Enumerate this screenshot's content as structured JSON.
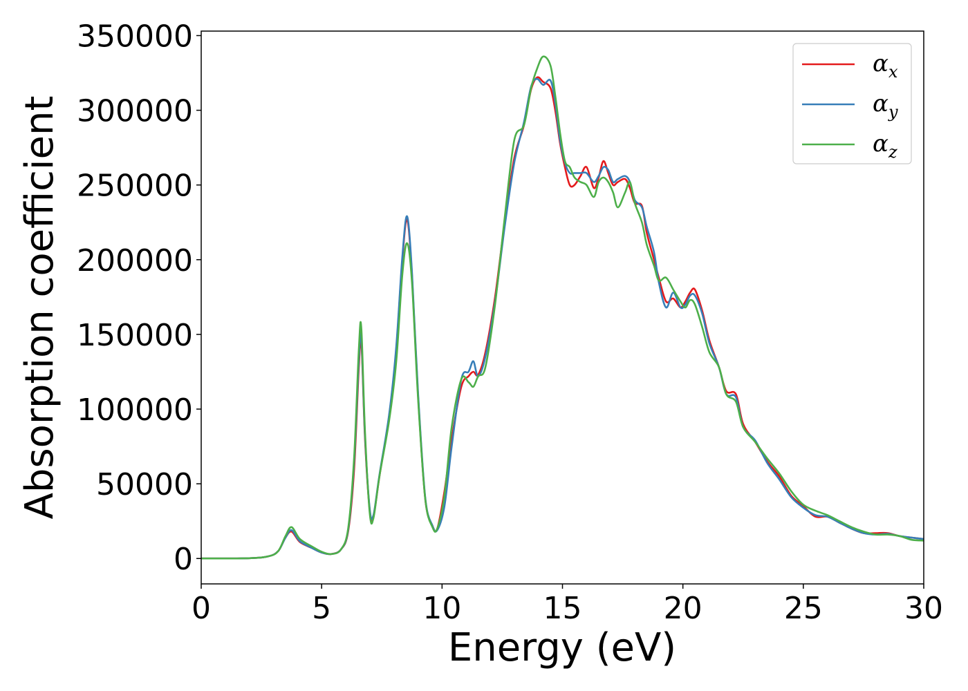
{
  "chart_data": {
    "type": "line",
    "title": "",
    "xlabel": "Energy (eV)",
    "ylabel": "Absorption coefficient",
    "xlim": [
      0,
      30
    ],
    "ylim": [
      -17000,
      353000
    ],
    "xticks": [
      0,
      5,
      10,
      15,
      20,
      25,
      30
    ],
    "yticks": [
      0,
      50000,
      100000,
      150000,
      200000,
      250000,
      300000,
      350000
    ],
    "grid": false,
    "legend_position": "top-right",
    "series": [
      {
        "name": "αx",
        "symbol": "α",
        "subscript": "x",
        "color": "#e41a1c",
        "x": [
          0,
          2,
          2.8,
          3.2,
          3.5,
          3.75,
          4.1,
          4.6,
          5.0,
          5.4,
          5.8,
          6.1,
          6.35,
          6.55,
          6.65,
          6.8,
          7.0,
          7.15,
          7.4,
          7.8,
          8.1,
          8.35,
          8.55,
          8.75,
          9.0,
          9.3,
          9.6,
          9.8,
          10.1,
          10.4,
          10.8,
          11.1,
          11.3,
          11.5,
          11.8,
          12.2,
          12.6,
          13.0,
          13.4,
          13.7,
          13.95,
          14.2,
          14.5,
          14.7,
          14.9,
          15.1,
          15.3,
          15.5,
          15.75,
          16.0,
          16.3,
          16.5,
          16.7,
          16.9,
          17.1,
          17.3,
          17.6,
          17.8,
          18.0,
          18.3,
          18.5,
          18.8,
          19.0,
          19.3,
          19.6,
          19.9,
          20.1,
          20.3,
          20.5,
          20.8,
          21.1,
          21.5,
          21.8,
          22.2,
          22.5,
          23.0,
          23.5,
          24.0,
          24.5,
          25.0,
          25.5,
          26.0,
          26.5,
          27.0,
          27.5,
          28.0,
          28.5,
          29.0,
          29.5,
          30.0
        ],
        "values": [
          0,
          200,
          1500,
          5000,
          14000,
          18000,
          11000,
          7000,
          4000,
          3000,
          6000,
          18000,
          60000,
          130000,
          145000,
          80000,
          32000,
          28000,
          55000,
          95000,
          140000,
          200000,
          227000,
          190000,
          110000,
          40000,
          22000,
          20000,
          45000,
          80000,
          115000,
          122000,
          125000,
          123000,
          138000,
          175000,
          225000,
          268000,
          290000,
          314000,
          322000,
          319000,
          315000,
          300000,
          278000,
          262000,
          250000,
          250000,
          256000,
          262000,
          248000,
          255000,
          266000,
          258000,
          250000,
          252000,
          254000,
          248000,
          238000,
          236000,
          218000,
          200000,
          188000,
          172000,
          174000,
          168000,
          172000,
          178000,
          180000,
          166000,
          146000,
          128000,
          112000,
          110000,
          90000,
          78000,
          65000,
          55000,
          42000,
          35000,
          28000,
          28000,
          24000,
          20000,
          17000,
          17000,
          17000,
          15000,
          14000,
          13000
        ]
      },
      {
        "name": "αy",
        "symbol": "α",
        "subscript": "y",
        "color": "#377eb8",
        "x": [
          0,
          2,
          2.8,
          3.2,
          3.5,
          3.75,
          4.1,
          4.6,
          5.0,
          5.4,
          5.8,
          6.1,
          6.35,
          6.55,
          6.65,
          6.8,
          7.0,
          7.15,
          7.4,
          7.8,
          8.1,
          8.35,
          8.55,
          8.75,
          9.0,
          9.3,
          9.6,
          9.8,
          10.1,
          10.4,
          10.8,
          11.1,
          11.3,
          11.5,
          11.8,
          12.2,
          12.6,
          13.0,
          13.4,
          13.7,
          13.95,
          14.2,
          14.5,
          14.7,
          14.9,
          15.1,
          15.3,
          15.5,
          15.75,
          16.0,
          16.3,
          16.5,
          16.7,
          16.9,
          17.1,
          17.3,
          17.6,
          17.8,
          18.0,
          18.3,
          18.5,
          18.8,
          19.0,
          19.3,
          19.6,
          19.9,
          20.1,
          20.3,
          20.5,
          20.8,
          21.1,
          21.5,
          21.8,
          22.2,
          22.5,
          23.0,
          23.5,
          24.0,
          24.5,
          25.0,
          25.5,
          26.0,
          26.5,
          27.0,
          27.5,
          28.0,
          28.5,
          29.0,
          29.5,
          30.0
        ],
        "values": [
          0,
          200,
          1500,
          5000,
          14000,
          19000,
          11500,
          7000,
          4000,
          3000,
          6000,
          19000,
          65000,
          135000,
          148000,
          82000,
          33000,
          29000,
          56000,
          96000,
          142000,
          202000,
          229000,
          192000,
          112000,
          41000,
          22000,
          19000,
          35000,
          75000,
          120000,
          125000,
          132000,
          122000,
          135000,
          172000,
          222000,
          265000,
          292000,
          316000,
          321000,
          317000,
          320000,
          305000,
          280000,
          265000,
          258000,
          258000,
          258000,
          258000,
          252000,
          256000,
          262000,
          260000,
          252000,
          254000,
          256000,
          252000,
          240000,
          235000,
          222000,
          205000,
          185000,
          168000,
          178000,
          168000,
          170000,
          176000,
          176000,
          164000,
          144000,
          128000,
          110000,
          108000,
          88000,
          79000,
          64000,
          53000,
          41000,
          34000,
          29000,
          28000,
          24000,
          20000,
          17000,
          16000,
          16500,
          15000,
          14000,
          13000
        ]
      },
      {
        "name": "αz",
        "symbol": "α",
        "subscript": "z",
        "color": "#4daf4a",
        "x": [
          0,
          2,
          2.8,
          3.2,
          3.5,
          3.75,
          4.1,
          4.6,
          5.0,
          5.4,
          5.8,
          6.1,
          6.35,
          6.55,
          6.65,
          6.8,
          7.0,
          7.15,
          7.4,
          7.8,
          8.1,
          8.35,
          8.55,
          8.75,
          9.0,
          9.3,
          9.6,
          9.8,
          10.1,
          10.4,
          10.8,
          11.1,
          11.3,
          11.5,
          11.8,
          12.2,
          12.6,
          13.0,
          13.4,
          13.7,
          13.95,
          14.2,
          14.5,
          14.7,
          14.9,
          15.1,
          15.3,
          15.5,
          15.75,
          16.0,
          16.3,
          16.5,
          16.7,
          16.9,
          17.1,
          17.3,
          17.6,
          17.8,
          18.0,
          18.3,
          18.5,
          18.8,
          19.0,
          19.3,
          19.6,
          19.9,
          20.1,
          20.3,
          20.5,
          20.8,
          21.1,
          21.5,
          21.8,
          22.2,
          22.5,
          23.0,
          23.5,
          24.0,
          24.5,
          25.0,
          25.5,
          26.0,
          26.5,
          27.0,
          27.5,
          28.0,
          28.5,
          29.0,
          29.5,
          30.0
        ],
        "values": [
          0,
          200,
          1500,
          5000,
          15000,
          21000,
          13000,
          8000,
          4500,
          3000,
          6000,
          20000,
          68000,
          142000,
          154000,
          85000,
          30000,
          27000,
          55000,
          92000,
          132000,
          190000,
          211000,
          185000,
          108000,
          40000,
          21000,
          20000,
          42000,
          88000,
          120000,
          118000,
          115000,
          122000,
          128000,
          170000,
          228000,
          280000,
          290000,
          315000,
          328000,
          336000,
          330000,
          310000,
          285000,
          266000,
          262000,
          255000,
          252000,
          250000,
          242000,
          252000,
          255000,
          252000,
          245000,
          235000,
          245000,
          252000,
          238000,
          225000,
          210000,
          196000,
          186000,
          188000,
          180000,
          172000,
          168000,
          173000,
          170000,
          155000,
          138000,
          128000,
          110000,
          105000,
          88000,
          78000,
          67000,
          57000,
          45000,
          36000,
          32000,
          29000,
          25000,
          21000,
          18000,
          16000,
          16000,
          15000,
          12500,
          12000
        ]
      }
    ]
  }
}
